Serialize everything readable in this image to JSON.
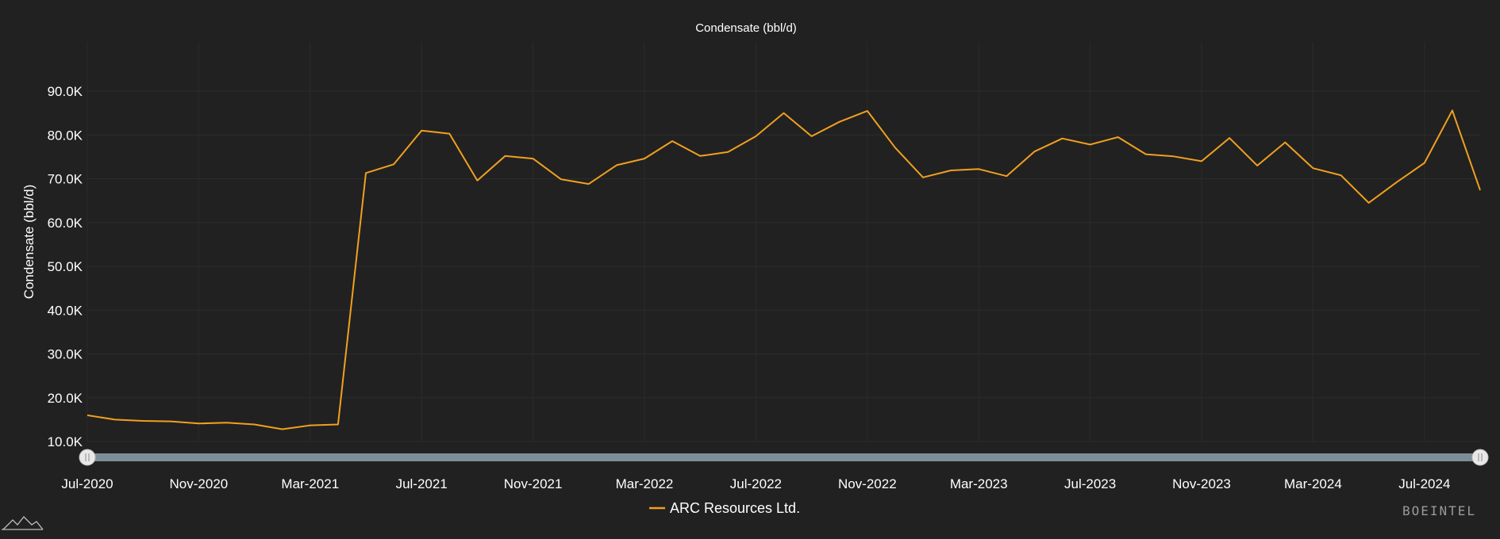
{
  "chart_data": {
    "type": "line",
    "title": "Condensate (bbl/d)",
    "ylabel": "Condensate (bbl/d)",
    "xlabel": "",
    "ylim": [
      7200,
      92000
    ],
    "yticks": [
      10000,
      20000,
      30000,
      40000,
      50000,
      60000,
      70000,
      80000,
      90000
    ],
    "ytick_labels": [
      "10.0K",
      "20.0K",
      "30.0K",
      "40.0K",
      "50.0K",
      "60.0K",
      "70.0K",
      "80.0K",
      "90.0K"
    ],
    "xtick_labels": [
      "Jul-2020",
      "Nov-2020",
      "Mar-2021",
      "Jul-2021",
      "Nov-2021",
      "Mar-2022",
      "Jul-2022",
      "Nov-2022",
      "Mar-2023",
      "Jul-2023",
      "Nov-2023",
      "Mar-2024",
      "Jul-2024"
    ],
    "xtick_indices": [
      0,
      4,
      8,
      12,
      16,
      20,
      24,
      28,
      32,
      36,
      40,
      44,
      48
    ],
    "grid": true,
    "legend_position": "bottom-center",
    "series": [
      {
        "name": "ARC Resources Ltd.",
        "color": "#f0a020",
        "x": [
          "Jul-2020",
          "Aug-2020",
          "Sep-2020",
          "Oct-2020",
          "Nov-2020",
          "Dec-2020",
          "Jan-2021",
          "Feb-2021",
          "Mar-2021",
          "Apr-2021",
          "May-2021",
          "Jun-2021",
          "Jul-2021",
          "Aug-2021",
          "Sep-2021",
          "Oct-2021",
          "Nov-2021",
          "Dec-2021",
          "Jan-2022",
          "Feb-2022",
          "Mar-2022",
          "Apr-2022",
          "May-2022",
          "Jun-2022",
          "Jul-2022",
          "Aug-2022",
          "Sep-2022",
          "Oct-2022",
          "Nov-2022",
          "Dec-2022",
          "Jan-2023",
          "Feb-2023",
          "Mar-2023",
          "Apr-2023",
          "May-2023",
          "Jun-2023",
          "Jul-2023",
          "Aug-2023",
          "Sep-2023",
          "Oct-2023",
          "Nov-2023",
          "Dec-2023",
          "Jan-2024",
          "Feb-2024",
          "Mar-2024",
          "Apr-2024",
          "May-2024",
          "Jun-2024",
          "Jul-2024",
          "Aug-2024",
          "Sep-2024"
        ],
        "values": [
          16000,
          15000,
          14700,
          14600,
          14100,
          14300,
          13900,
          12800,
          13700,
          13900,
          71300,
          73300,
          81000,
          80300,
          69600,
          75200,
          74600,
          69900,
          68800,
          73100,
          74600,
          78600,
          75200,
          76100,
          79700,
          85000,
          79700,
          83000,
          85500,
          77100,
          70300,
          71900,
          72200,
          70600,
          76200,
          79200,
          77800,
          79500,
          75600,
          75100,
          74000,
          79300,
          73000,
          78300,
          72400,
          70800,
          64500,
          69200,
          73600,
          85600,
          67400
        ]
      }
    ]
  },
  "range_slider": {
    "start": "Jul-2020",
    "end": "Sep-2024",
    "color": "#7d8d98"
  },
  "brand": {
    "text": "BOEINTEL"
  },
  "logo": {
    "icon": "mountain-logo-icon"
  }
}
